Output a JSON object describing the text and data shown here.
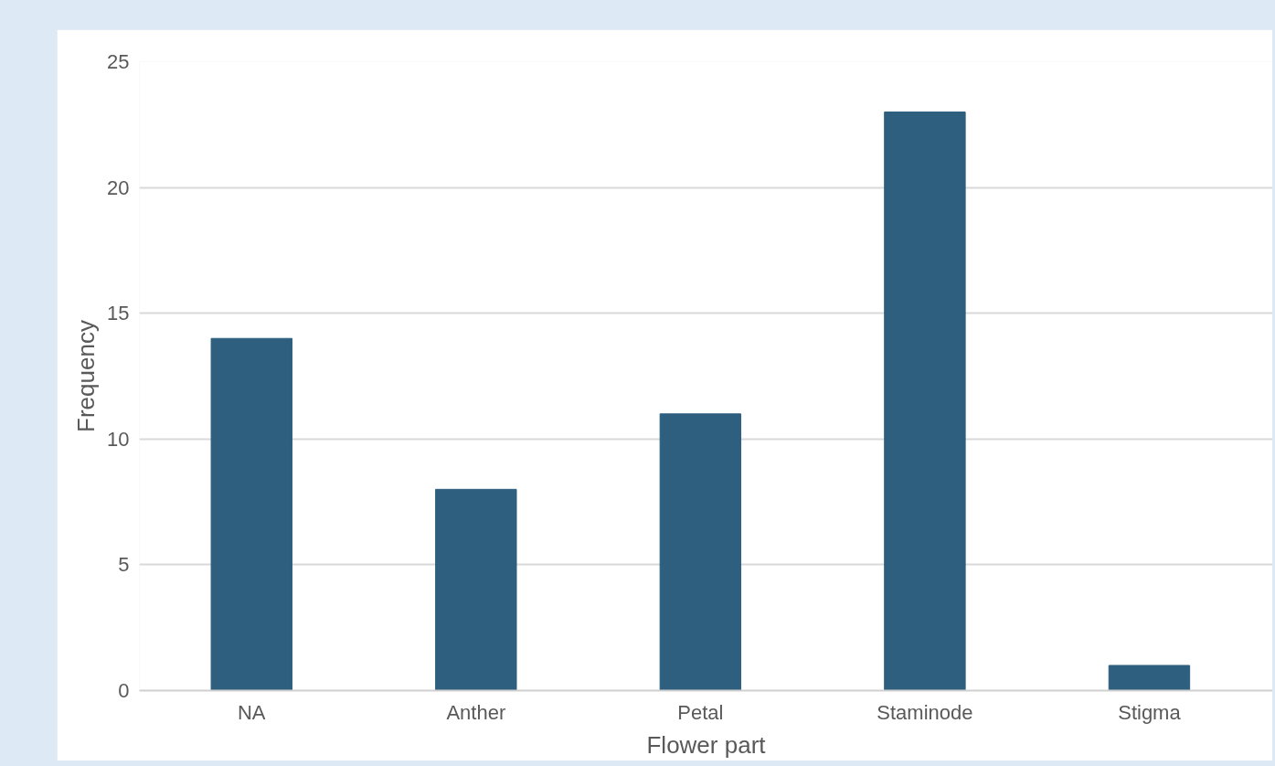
{
  "chart_data": {
    "type": "bar",
    "xlabel": "Flower part",
    "ylabel": "Frequency",
    "categories": [
      "NA",
      "Anther",
      "Petal",
      "Staminode",
      "Stigma"
    ],
    "values": [
      14,
      8,
      11,
      23,
      1
    ],
    "color": "#2e5f7f",
    "ylim": [
      0,
      25
    ],
    "yticks": [
      0,
      5,
      10,
      15,
      20,
      25
    ],
    "grid": "y"
  }
}
